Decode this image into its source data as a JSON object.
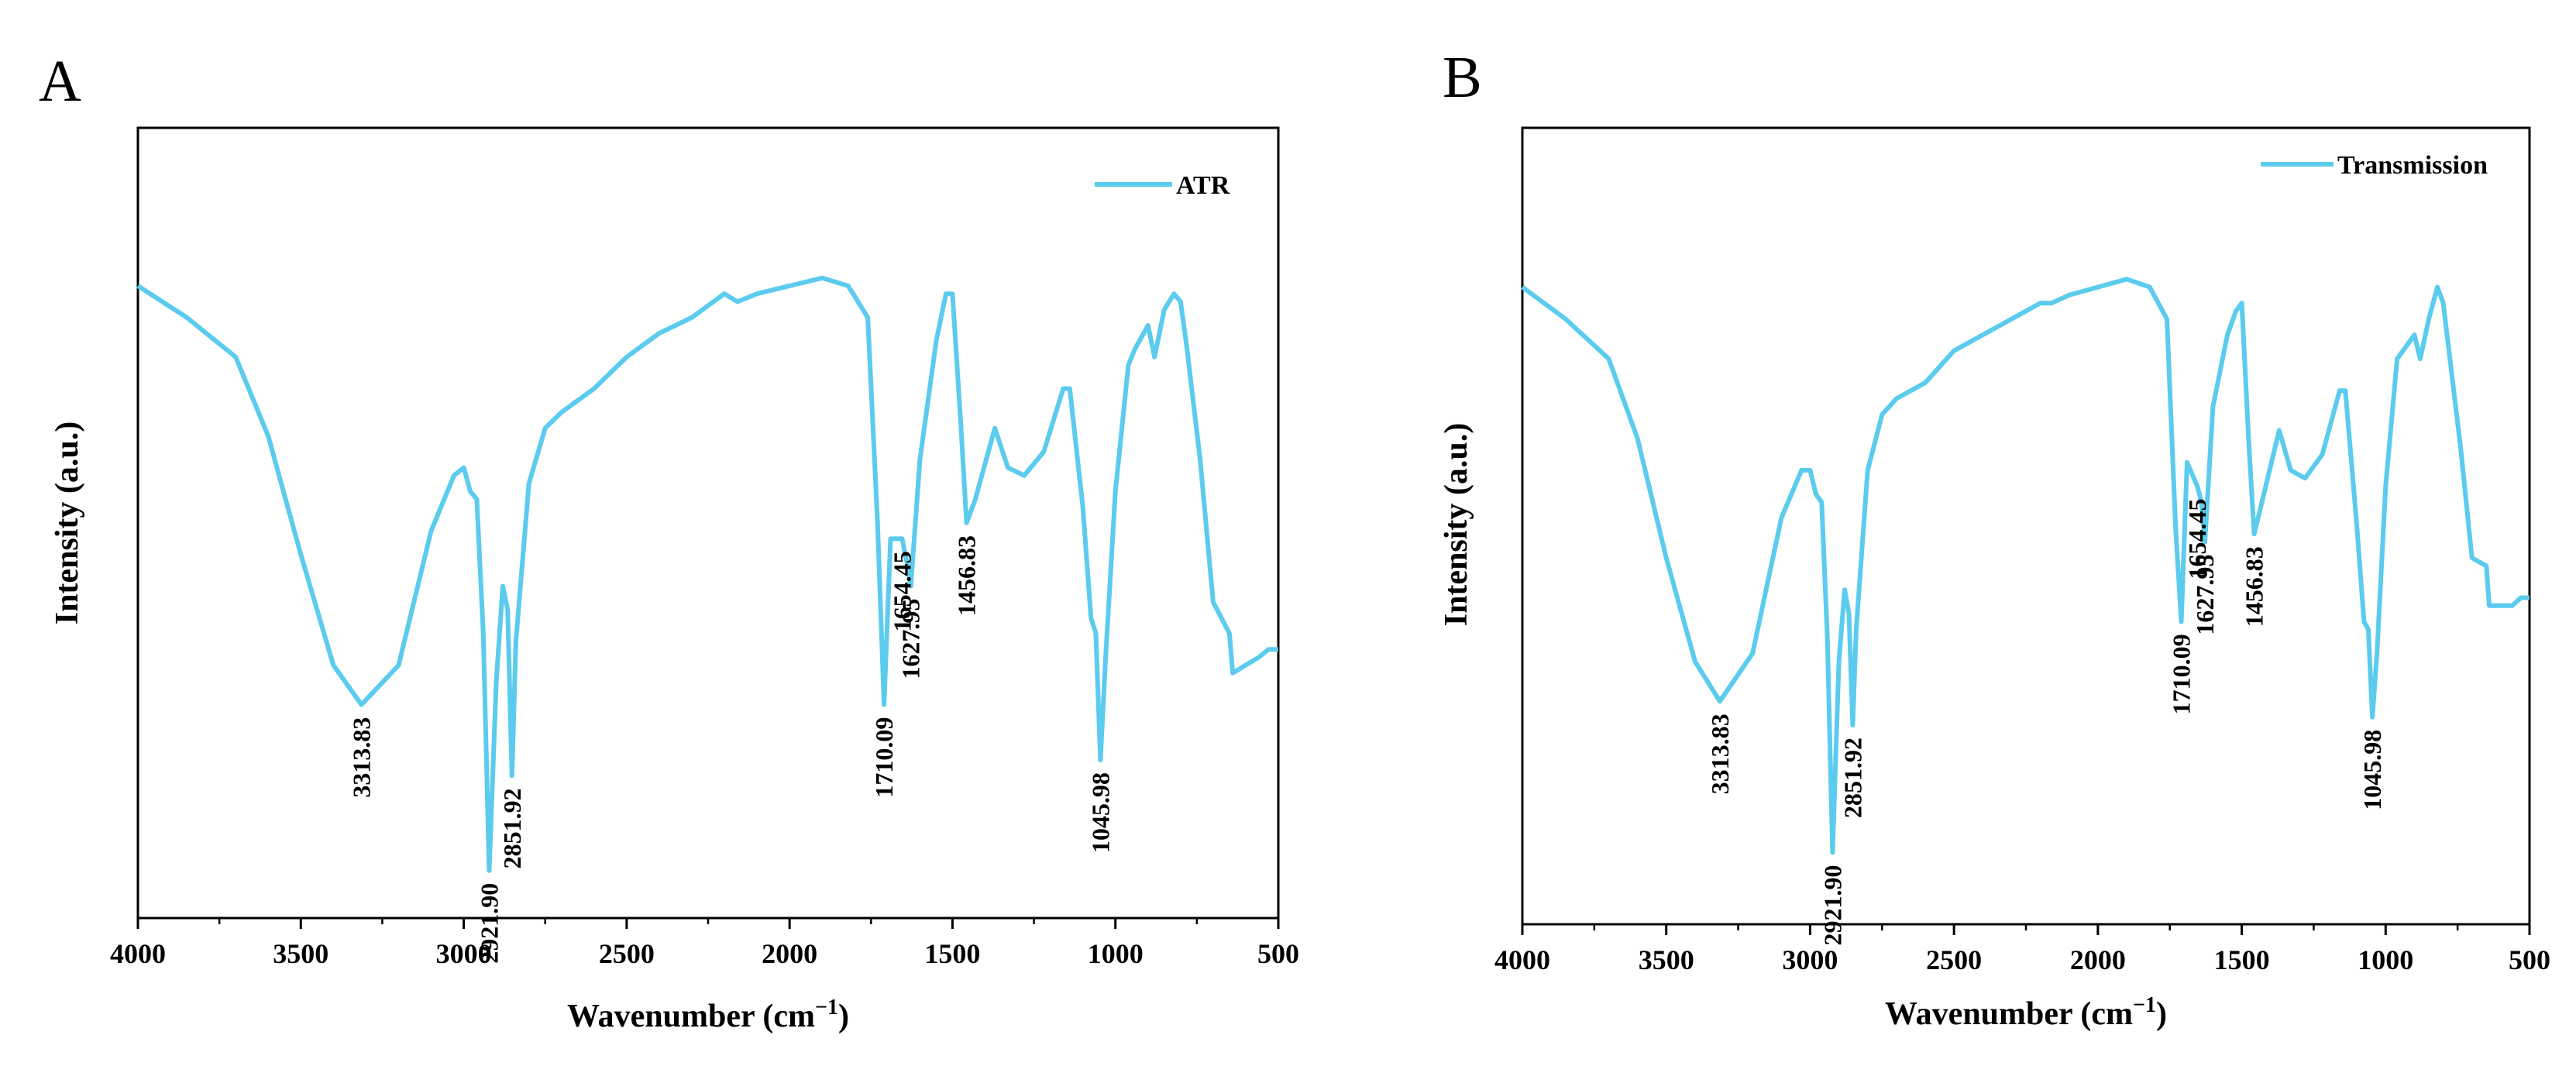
{
  "figure": {
    "colors": {
      "series": "#5bcbee",
      "axis": "#000000",
      "background": "#ffffff"
    }
  },
  "chart_data": [
    {
      "panel": "A",
      "type": "line",
      "xlabel": "Wavenumber (cm",
      "xlabel_sup": "−1",
      "xlabel_close": ")",
      "ylabel": "Intensity (a.u.)",
      "xlim": [
        4000,
        500
      ],
      "ylim": [
        0,
        1
      ],
      "x_reversed": true,
      "xticks": [
        4000,
        3500,
        3000,
        2500,
        2000,
        1500,
        1000,
        500
      ],
      "yticks_shown": false,
      "grid": false,
      "legend": {
        "position": "top-right",
        "entries": [
          "ATR"
        ]
      },
      "series": [
        {
          "name": "ATR",
          "points": [
            [
              4000,
              0.8
            ],
            [
              3850,
              0.76
            ],
            [
              3700,
              0.71
            ],
            [
              3600,
              0.61
            ],
            [
              3500,
              0.46
            ],
            [
              3400,
              0.32
            ],
            [
              3313.83,
              0.27
            ],
            [
              3200,
              0.32
            ],
            [
              3100,
              0.49
            ],
            [
              3030,
              0.56
            ],
            [
              3000,
              0.57
            ],
            [
              2980,
              0.54
            ],
            [
              2960,
              0.53
            ],
            [
              2940,
              0.36
            ],
            [
              2921.9,
              0.06
            ],
            [
              2900,
              0.3
            ],
            [
              2880,
              0.42
            ],
            [
              2865,
              0.39
            ],
            [
              2851.92,
              0.18
            ],
            [
              2840,
              0.35
            ],
            [
              2800,
              0.55
            ],
            [
              2750,
              0.62
            ],
            [
              2700,
              0.64
            ],
            [
              2600,
              0.67
            ],
            [
              2500,
              0.71
            ],
            [
              2400,
              0.74
            ],
            [
              2300,
              0.76
            ],
            [
              2200,
              0.79
            ],
            [
              2160,
              0.78
            ],
            [
              2100,
              0.79
            ],
            [
              2000,
              0.8
            ],
            [
              1900,
              0.81
            ],
            [
              1820,
              0.8
            ],
            [
              1760,
              0.76
            ],
            [
              1730,
              0.5
            ],
            [
              1710.09,
              0.27
            ],
            [
              1690,
              0.48
            ],
            [
              1654.45,
              0.48
            ],
            [
              1640,
              0.45
            ],
            [
              1627.95,
              0.42
            ],
            [
              1600,
              0.58
            ],
            [
              1550,
              0.73
            ],
            [
              1520,
              0.79
            ],
            [
              1500,
              0.79
            ],
            [
              1475,
              0.63
            ],
            [
              1456.83,
              0.5
            ],
            [
              1430,
              0.53
            ],
            [
              1390,
              0.59
            ],
            [
              1370,
              0.62
            ],
            [
              1330,
              0.57
            ],
            [
              1280,
              0.56
            ],
            [
              1220,
              0.59
            ],
            [
              1160,
              0.67
            ],
            [
              1140,
              0.67
            ],
            [
              1100,
              0.52
            ],
            [
              1075,
              0.38
            ],
            [
              1060,
              0.36
            ],
            [
              1045.98,
              0.2
            ],
            [
              1030,
              0.33
            ],
            [
              1000,
              0.54
            ],
            [
              960,
              0.7
            ],
            [
              940,
              0.72
            ],
            [
              900,
              0.75
            ],
            [
              880,
              0.71
            ],
            [
              850,
              0.77
            ],
            [
              820,
              0.79
            ],
            [
              800,
              0.78
            ],
            [
              780,
              0.72
            ],
            [
              740,
              0.58
            ],
            [
              700,
              0.4
            ],
            [
              650,
              0.36
            ],
            [
              640,
              0.31
            ],
            [
              600,
              0.32
            ],
            [
              560,
              0.33
            ],
            [
              530,
              0.34
            ],
            [
              500,
              0.34
            ]
          ]
        }
      ],
      "peaks": [
        {
          "x": 3313.83,
          "label": "3313.83"
        },
        {
          "x": 2921.9,
          "label": "2921.90"
        },
        {
          "x": 2851.92,
          "label": "2851.92"
        },
        {
          "x": 1710.09,
          "label": "1710.09"
        },
        {
          "x": 1654.45,
          "label": "1654.45"
        },
        {
          "x": 1627.95,
          "label": "1627.95"
        },
        {
          "x": 1456.83,
          "label": "1456.83"
        },
        {
          "x": 1045.98,
          "label": "1045.98"
        }
      ]
    },
    {
      "panel": "B",
      "type": "line",
      "xlabel": "Wavenumber (cm",
      "xlabel_sup": "−1",
      "xlabel_close": ")",
      "ylabel": "Intensity (a.u.)",
      "xlim": [
        4000,
        500
      ],
      "ylim": [
        0,
        1
      ],
      "x_reversed": true,
      "xticks": [
        4000,
        3500,
        3000,
        2500,
        2000,
        1500,
        1000,
        500
      ],
      "yticks_shown": false,
      "grid": false,
      "legend": {
        "position": "top-right",
        "entries": [
          "Transmission"
        ]
      },
      "series": [
        {
          "name": "Transmission",
          "points": [
            [
              4000,
              0.8
            ],
            [
              3850,
              0.76
            ],
            [
              3700,
              0.71
            ],
            [
              3600,
              0.61
            ],
            [
              3500,
              0.46
            ],
            [
              3400,
              0.33
            ],
            [
              3313.83,
              0.28
            ],
            [
              3200,
              0.34
            ],
            [
              3100,
              0.51
            ],
            [
              3030,
              0.57
            ],
            [
              3000,
              0.57
            ],
            [
              2980,
              0.54
            ],
            [
              2960,
              0.53
            ],
            [
              2940,
              0.36
            ],
            [
              2921.9,
              0.09
            ],
            [
              2900,
              0.33
            ],
            [
              2880,
              0.42
            ],
            [
              2865,
              0.39
            ],
            [
              2851.92,
              0.25
            ],
            [
              2840,
              0.37
            ],
            [
              2800,
              0.57
            ],
            [
              2750,
              0.64
            ],
            [
              2700,
              0.66
            ],
            [
              2600,
              0.68
            ],
            [
              2500,
              0.72
            ],
            [
              2400,
              0.74
            ],
            [
              2300,
              0.76
            ],
            [
              2200,
              0.78
            ],
            [
              2160,
              0.78
            ],
            [
              2100,
              0.79
            ],
            [
              2000,
              0.8
            ],
            [
              1900,
              0.81
            ],
            [
              1820,
              0.8
            ],
            [
              1760,
              0.76
            ],
            [
              1730,
              0.5
            ],
            [
              1710.09,
              0.38
            ],
            [
              1690,
              0.58
            ],
            [
              1654.45,
              0.55
            ],
            [
              1640,
              0.53
            ],
            [
              1627.95,
              0.48
            ],
            [
              1600,
              0.65
            ],
            [
              1550,
              0.74
            ],
            [
              1520,
              0.77
            ],
            [
              1500,
              0.78
            ],
            [
              1475,
              0.6
            ],
            [
              1456.83,
              0.49
            ],
            [
              1430,
              0.53
            ],
            [
              1390,
              0.59
            ],
            [
              1370,
              0.62
            ],
            [
              1330,
              0.57
            ],
            [
              1280,
              0.56
            ],
            [
              1220,
              0.59
            ],
            [
              1160,
              0.67
            ],
            [
              1140,
              0.67
            ],
            [
              1100,
              0.5
            ],
            [
              1075,
              0.38
            ],
            [
              1060,
              0.37
            ],
            [
              1045.98,
              0.26
            ],
            [
              1030,
              0.34
            ],
            [
              1000,
              0.55
            ],
            [
              960,
              0.71
            ],
            [
              940,
              0.72
            ],
            [
              900,
              0.74
            ],
            [
              880,
              0.71
            ],
            [
              850,
              0.76
            ],
            [
              820,
              0.8
            ],
            [
              800,
              0.78
            ],
            [
              780,
              0.72
            ],
            [
              740,
              0.6
            ],
            [
              700,
              0.46
            ],
            [
              650,
              0.45
            ],
            [
              640,
              0.4
            ],
            [
              600,
              0.4
            ],
            [
              560,
              0.4
            ],
            [
              530,
              0.41
            ],
            [
              500,
              0.41
            ]
          ]
        }
      ],
      "peaks": [
        {
          "x": 3313.83,
          "label": "3313.83"
        },
        {
          "x": 2921.9,
          "label": "2921.90"
        },
        {
          "x": 2851.92,
          "label": "2851.92"
        },
        {
          "x": 1710.09,
          "label": "1710.09"
        },
        {
          "x": 1654.45,
          "label": "1654.45"
        },
        {
          "x": 1627.95,
          "label": "1627.95"
        },
        {
          "x": 1456.83,
          "label": "1456.83"
        },
        {
          "x": 1045.98,
          "label": "1045.98"
        }
      ]
    }
  ]
}
